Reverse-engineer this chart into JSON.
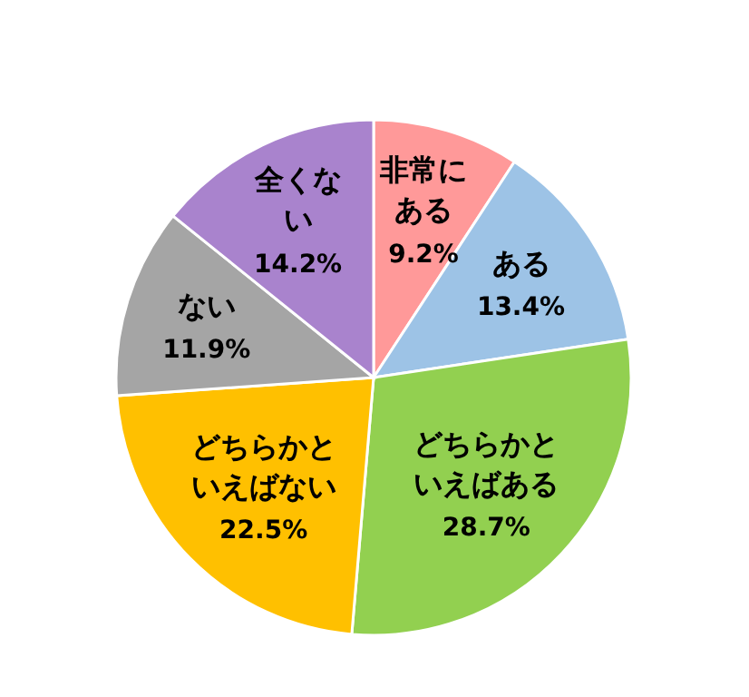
{
  "chart_data": {
    "type": "pie",
    "categories": [
      "非常にある",
      "ある",
      "どちらかといえばある",
      "どちらかといえばない",
      "ない",
      "全くない"
    ],
    "values": [
      9.2,
      13.4,
      28.7,
      22.5,
      11.9,
      14.2
    ],
    "value_labels": [
      "9.2%",
      "13.4%",
      "28.7%",
      "22.5%",
      "11.9%",
      "14.2%"
    ],
    "colors": [
      "#ff9999",
      "#9dc3e6",
      "#92d050",
      "#ffc000",
      "#a5a5a5",
      "#a983cd"
    ]
  }
}
